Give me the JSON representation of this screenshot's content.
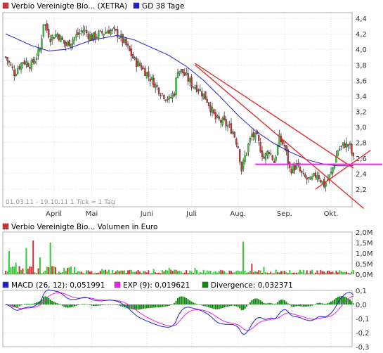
{
  "colors": {
    "up": "#33cc33",
    "down": "#cc3333",
    "ma": "#2222cc",
    "trend_red": "#e03030",
    "support": "#ee22ee",
    "macd": "#2222cc",
    "exp": "#ee22ee",
    "divergence": "#118811",
    "grid": "#cccccc",
    "frame": "#999999"
  },
  "chart_data": [
    {
      "type": "candlestick",
      "legend": [
        {
          "name": "Verbio Vereinigte Bio... (XETRA)",
          "color": "#cc3333",
          "icon": "square-icon"
        },
        {
          "name": "GD 38 Tage",
          "color": "#2222cc",
          "icon": "square-icon"
        }
      ],
      "ylim": [
        2.0,
        4.5
      ],
      "y_ticks": [
        "4,4",
        "4,2",
        "4,0",
        "3,8",
        "3,6",
        "3,4",
        "3,2",
        "3,0",
        "2,8",
        "2,6",
        "2,4",
        "2,2"
      ],
      "x_ticks": [
        "April",
        "Mai",
        "Juni",
        "Juli",
        "Aug.",
        "Sep.",
        "Okt."
      ],
      "info_text": "01.03.11 - 19.10.11   1 Tick = 1 Tag",
      "close_anchors": [
        [
          0,
          3.9
        ],
        [
          5,
          3.7
        ],
        [
          10,
          3.85
        ],
        [
          15,
          3.8
        ],
        [
          20,
          4.0
        ],
        [
          22,
          4.35
        ],
        [
          26,
          4.15
        ],
        [
          30,
          4.2
        ],
        [
          35,
          4.05
        ],
        [
          40,
          4.15
        ],
        [
          45,
          4.25
        ],
        [
          50,
          4.15
        ],
        [
          55,
          4.2
        ],
        [
          60,
          4.25
        ],
        [
          65,
          4.2
        ],
        [
          70,
          4.05
        ],
        [
          75,
          3.85
        ],
        [
          80,
          3.75
        ],
        [
          85,
          3.6
        ],
        [
          90,
          3.45
        ],
        [
          95,
          3.35
        ],
        [
          98,
          3.45
        ],
        [
          100,
          3.75
        ],
        [
          103,
          3.7
        ],
        [
          108,
          3.55
        ],
        [
          112,
          3.5
        ],
        [
          117,
          3.35
        ],
        [
          122,
          3.1
        ],
        [
          127,
          3.05
        ],
        [
          132,
          2.95
        ],
        [
          135,
          2.75
        ],
        [
          137,
          2.45
        ],
        [
          140,
          2.7
        ],
        [
          143,
          2.9
        ],
        [
          146,
          2.85
        ],
        [
          150,
          2.6
        ],
        [
          153,
          2.7
        ],
        [
          156,
          2.55
        ],
        [
          159,
          2.85
        ],
        [
          162,
          2.75
        ],
        [
          165,
          2.45
        ],
        [
          169,
          2.5
        ],
        [
          173,
          2.35
        ],
        [
          177,
          2.3
        ],
        [
          181,
          2.4
        ],
        [
          185,
          2.25
        ],
        [
          189,
          2.4
        ],
        [
          193,
          2.7
        ],
        [
          197,
          2.78
        ],
        [
          200,
          2.75
        ],
        [
          202,
          2.58
        ]
      ],
      "ma38_anchors": [
        [
          0,
          4.2
        ],
        [
          15,
          4.05
        ],
        [
          25,
          3.98
        ],
        [
          35,
          4.0
        ],
        [
          50,
          4.12
        ],
        [
          65,
          4.18
        ],
        [
          75,
          4.12
        ],
        [
          85,
          4.02
        ],
        [
          95,
          3.92
        ],
        [
          105,
          3.78
        ],
        [
          115,
          3.6
        ],
        [
          125,
          3.38
        ],
        [
          135,
          3.15
        ],
        [
          145,
          2.95
        ],
        [
          155,
          2.8
        ],
        [
          165,
          2.68
        ],
        [
          175,
          2.58
        ],
        [
          185,
          2.52
        ],
        [
          193,
          2.5
        ],
        [
          202,
          2.5
        ]
      ],
      "annotations": [
        {
          "type": "trendline",
          "color": "#e03030",
          "points": [
            [
              110,
              3.82
            ],
            [
              202,
              2.47
            ]
          ]
        },
        {
          "type": "trendline",
          "color": "#e03030",
          "points": [
            [
              110,
              3.8
            ],
            [
              208,
              1.95
            ]
          ]
        },
        {
          "type": "trendline",
          "color": "#e03030",
          "points": [
            [
              180,
              2.2
            ],
            [
              212,
              2.7
            ]
          ]
        },
        {
          "type": "support",
          "color": "#ee22ee",
          "value": 2.52,
          "x_range": [
            145,
            222
          ]
        }
      ]
    },
    {
      "type": "bar",
      "legend": [
        {
          "name": "Verbio Vereinigte Bio... Volumen in Euro",
          "color": "#cc3333",
          "icon": "square-icon"
        }
      ],
      "ylim": [
        0,
        2.0
      ],
      "unit": "M",
      "y_ticks": [
        "2,0M",
        "1,5M",
        "1,0M",
        "0,5M",
        "0,0M"
      ],
      "spikes": [
        [
          2,
          1.1
        ],
        [
          6,
          0.55
        ],
        [
          12,
          1.25
        ],
        [
          16,
          1.6
        ],
        [
          20,
          0.8
        ],
        [
          26,
          1.5
        ],
        [
          40,
          0.35
        ],
        [
          56,
          0.25
        ],
        [
          86,
          0.25
        ],
        [
          95,
          0.3
        ],
        [
          110,
          0.3
        ],
        [
          138,
          1.55
        ],
        [
          143,
          0.5
        ],
        [
          150,
          0.35
        ],
        [
          160,
          0.15
        ],
        [
          172,
          0.12
        ]
      ]
    },
    {
      "type": "line",
      "legend": [
        {
          "name": "MACD (26, 12): 0,051991",
          "color": "#2222cc",
          "icon": "square-icon"
        },
        {
          "name": "EXP (9): 0,019621",
          "color": "#ee22ee",
          "icon": "square-icon"
        },
        {
          "name": "Divergence: 0,032371",
          "color": "#118811",
          "icon": "square-icon"
        }
      ],
      "ylim": [
        -0.3,
        0.1
      ],
      "y_ticks": [
        "0,1",
        "0,0",
        "-0,1",
        "-0,2",
        "-0,3"
      ]
    }
  ]
}
